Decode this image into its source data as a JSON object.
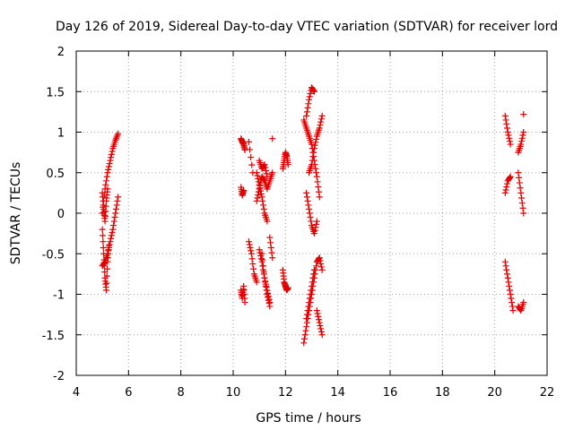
{
  "chart_data": {
    "type": "scatter",
    "title": "Day 126 of 2019, Sidereal Day-to-day VTEC variation (SDTVAR) for receiver lord",
    "xlabel": "GPS time / hours",
    "ylabel": "SDTVAR / TECUs",
    "xlim": [
      4,
      22
    ],
    "ylim": [
      -2,
      2
    ],
    "xticks": [
      "4",
      "6",
      "8",
      "10",
      "12",
      "14",
      "16",
      "18",
      "20",
      "22"
    ],
    "yticks": [
      "2",
      "1.5",
      "1",
      "0.5",
      "0",
      "-0.5",
      "-1",
      "-1.5",
      "-2"
    ],
    "grid": true,
    "marker": "plus",
    "series": [
      {
        "name": "SDTVAR",
        "color": "#e00000",
        "tracks": [
          {
            "x": [
              5.0,
              5.1,
              5.2,
              5.3,
              5.4,
              5.5,
              5.6
            ],
            "y": [
              0.0,
              0.3,
              0.5,
              0.65,
              0.8,
              0.9,
              0.98
            ]
          },
          {
            "x": [
              5.0,
              5.05,
              5.1,
              5.15,
              5.2,
              5.25
            ],
            "y": [
              -0.2,
              -0.5,
              -0.8,
              -0.95,
              -0.6,
              -0.4
            ]
          },
          {
            "x": [
              5.0,
              5.1,
              5.2,
              5.3,
              5.4,
              5.5,
              5.6
            ],
            "y": [
              -0.65,
              -0.6,
              -0.5,
              -0.35,
              -0.2,
              0.0,
              0.2
            ]
          },
          {
            "x": [
              5.0,
              5.05,
              5.1,
              5.15,
              5.2
            ],
            "y": [
              0.25,
              0.05,
              -0.1,
              0.15,
              0.3
            ]
          },
          {
            "x": [
              10.3,
              10.35,
              10.4,
              10.45
            ],
            "y": [
              0.92,
              0.88,
              0.85,
              0.78
            ]
          },
          {
            "x": [
              10.3,
              10.35,
              10.4
            ],
            "y": [
              0.32,
              0.22,
              0.28
            ]
          },
          {
            "x": [
              10.3,
              10.35,
              10.4,
              10.45
            ],
            "y": [
              -0.95,
              -1.05,
              -0.9,
              -1.1
            ]
          },
          {
            "x": [
              10.6,
              10.75
            ],
            "y": [
              0.88,
              0.5
            ]
          },
          {
            "x": [
              10.6,
              10.7,
              10.8,
              10.9
            ],
            "y": [
              -0.35,
              -0.5,
              -0.75,
              -0.85
            ]
          },
          {
            "x": [
              10.9,
              11.0,
              11.1,
              11.2,
              11.3,
              11.4,
              11.5
            ],
            "y": [
              0.15,
              0.3,
              0.45,
              0.4,
              0.3,
              0.4,
              0.5
            ]
          },
          {
            "x": [
              10.9,
              11.0,
              11.1,
              11.2,
              11.3
            ],
            "y": [
              0.5,
              0.35,
              0.2,
              0.0,
              -0.1
            ]
          },
          {
            "x": [
              11.0,
              11.1,
              11.2,
              11.3
            ],
            "y": [
              0.65,
              0.55,
              0.6,
              0.45
            ]
          },
          {
            "x": [
              11.0,
              11.1,
              11.2,
              11.3,
              11.4
            ],
            "y": [
              -0.45,
              -0.6,
              -0.8,
              -1.0,
              -1.15
            ]
          },
          {
            "x": [
              11.1,
              11.2,
              11.3,
              11.4
            ],
            "y": [
              -0.5,
              -0.8,
              -0.95,
              -1.1
            ]
          },
          {
            "x": [
              11.4,
              11.5
            ],
            "y": [
              -0.3,
              -0.55
            ]
          },
          {
            "x": [
              11.5
            ],
            "y": [
              0.92
            ]
          },
          {
            "x": [
              11.9,
              11.95,
              12.0,
              12.05,
              12.1
            ],
            "y": [
              0.55,
              0.65,
              0.75,
              0.7,
              0.6
            ]
          },
          {
            "x": [
              11.9,
              11.95,
              12.0,
              12.05,
              12.1
            ],
            "y": [
              -0.7,
              -0.85,
              -0.9,
              -0.95,
              -0.92
            ]
          },
          {
            "x": [
              12.7,
              12.8,
              12.9,
              13.0,
              13.1,
              13.2,
              13.3
            ],
            "y": [
              1.15,
              1.05,
              0.95,
              0.85,
              0.65,
              0.45,
              0.2
            ]
          },
          {
            "x": [
              12.8,
              12.9,
              13.0,
              13.1
            ],
            "y": [
              1.2,
              1.4,
              1.55,
              1.5
            ]
          },
          {
            "x": [
              12.9,
              13.0,
              13.1,
              13.2,
              13.3,
              13.4
            ],
            "y": [
              0.5,
              0.6,
              0.8,
              0.95,
              1.05,
              1.2
            ]
          },
          {
            "x": [
              12.8,
              12.9,
              13.0,
              13.1,
              13.2
            ],
            "y": [
              0.25,
              0.05,
              -0.15,
              -0.25,
              -0.1
            ]
          },
          {
            "x": [
              12.7,
              12.8,
              12.9,
              13.0,
              13.1,
              13.2,
              13.3,
              13.4
            ],
            "y": [
              -1.6,
              -1.4,
              -1.2,
              -1.0,
              -0.8,
              -0.6,
              -0.55,
              -0.7
            ]
          },
          {
            "x": [
              12.8,
              12.9,
              13.0,
              13.1
            ],
            "y": [
              -1.3,
              -1.1,
              -0.9,
              -0.7
            ]
          },
          {
            "x": [
              13.2,
              13.3,
              13.4
            ],
            "y": [
              -1.2,
              -1.35,
              -1.5
            ]
          },
          {
            "x": [
              20.4,
              20.5,
              20.6
            ],
            "y": [
              1.2,
              1.0,
              0.85
            ]
          },
          {
            "x": [
              20.4,
              20.5,
              20.6
            ],
            "y": [
              0.25,
              0.4,
              0.45
            ]
          },
          {
            "x": [
              20.4,
              20.5,
              20.6,
              20.7
            ],
            "y": [
              -0.6,
              -0.8,
              -1.0,
              -1.2
            ]
          },
          {
            "x": [
              20.9,
              21.0,
              21.1
            ],
            "y": [
              0.75,
              0.85,
              1.0
            ]
          },
          {
            "x": [
              20.9,
              21.0,
              21.1
            ],
            "y": [
              0.5,
              0.25,
              0.0
            ]
          },
          {
            "x": [
              21.1
            ],
            "y": [
              1.22
            ]
          },
          {
            "x": [
              20.9,
              21.0,
              21.1
            ],
            "y": [
              -1.15,
              -1.2,
              -1.1
            ]
          }
        ]
      }
    ]
  }
}
